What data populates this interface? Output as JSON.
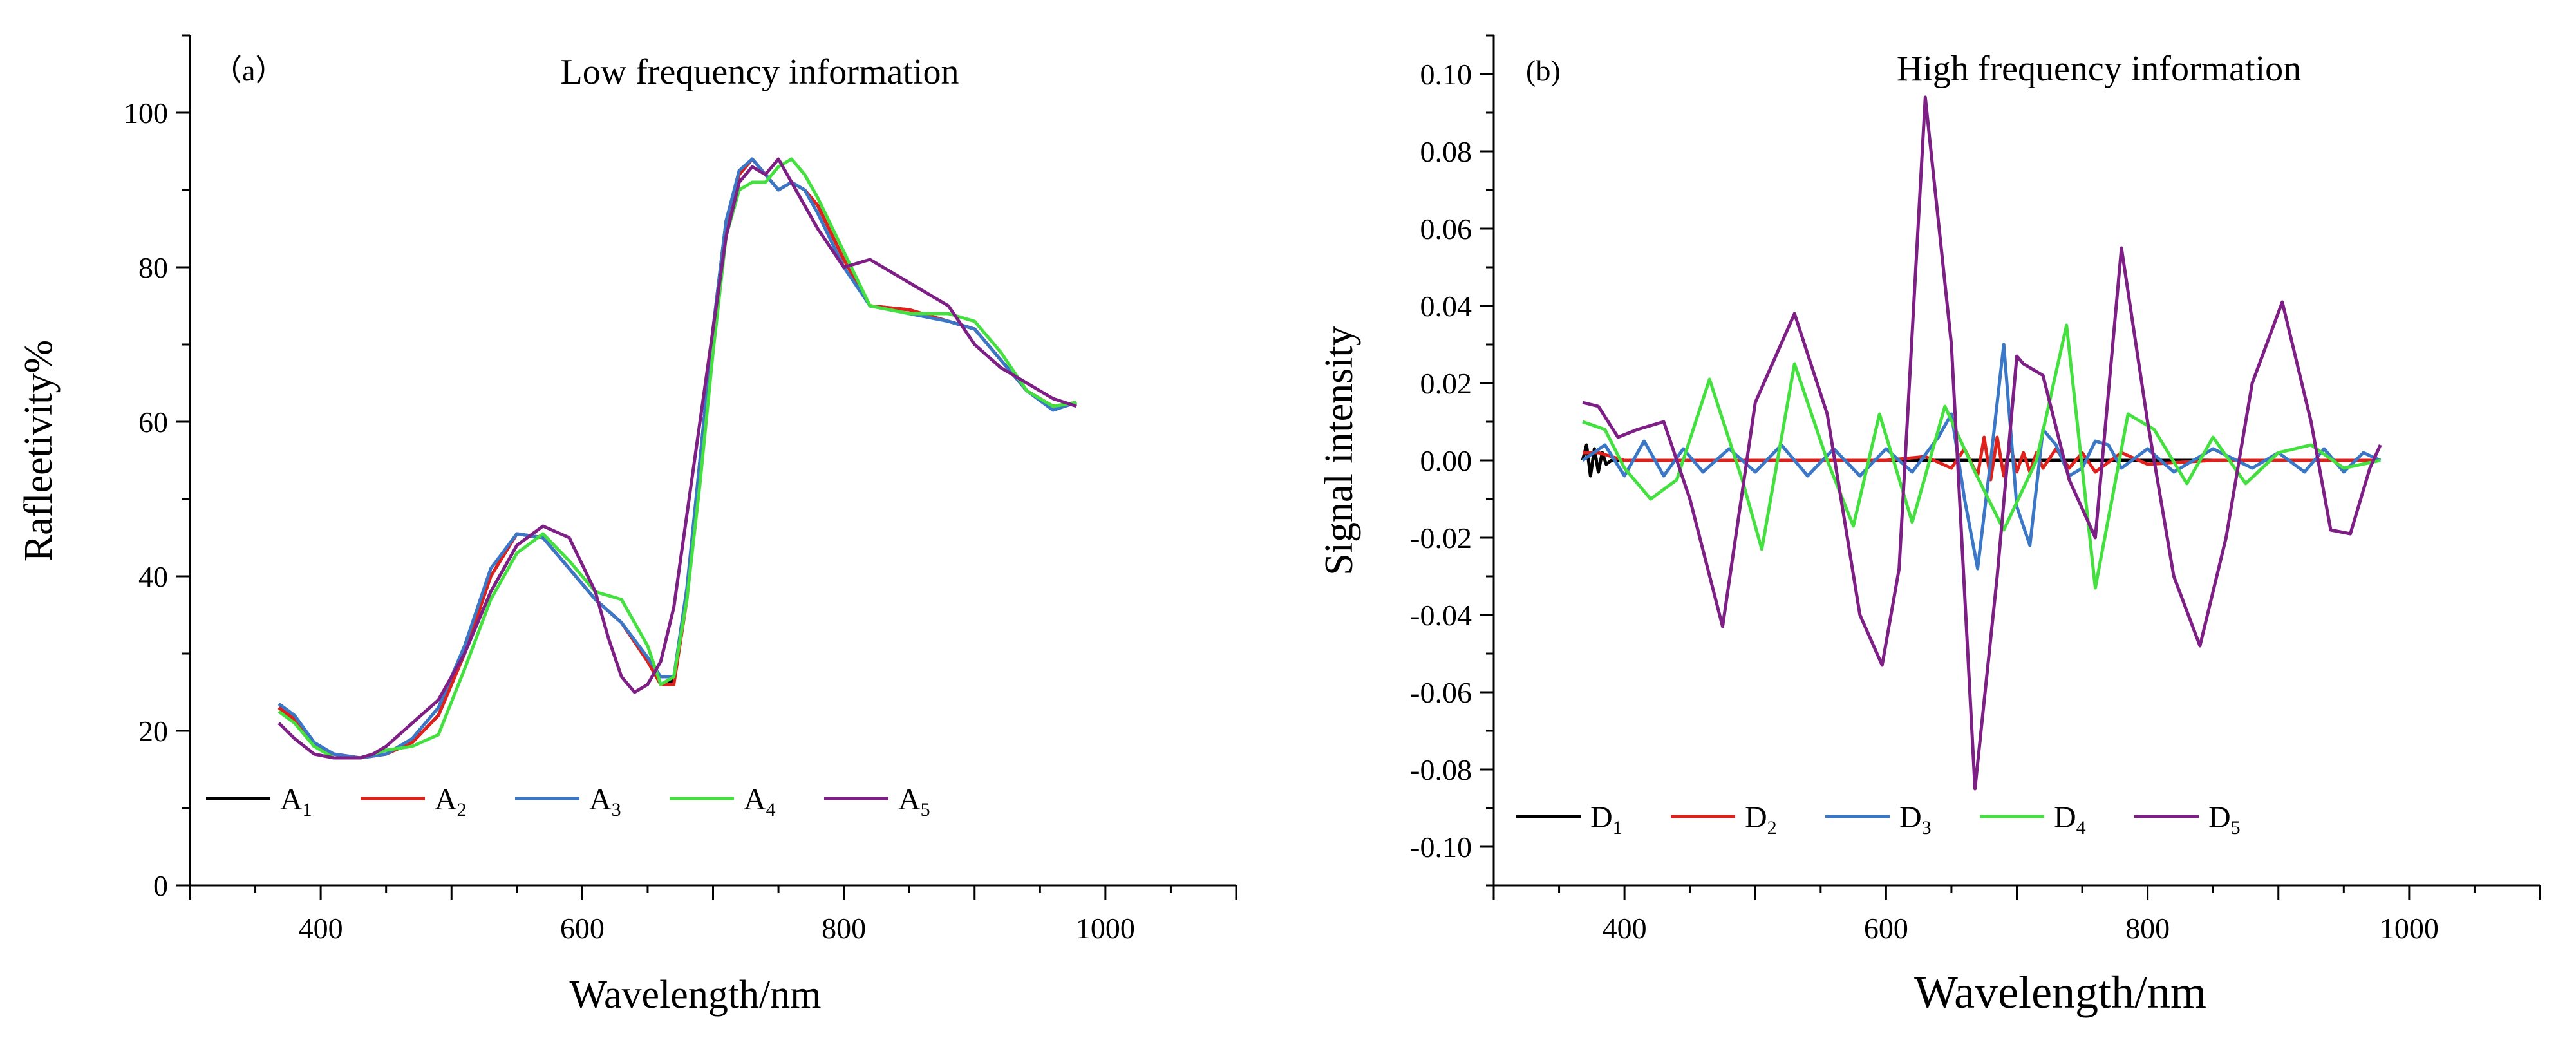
{
  "chart_data": [
    {
      "id": "a",
      "type": "line",
      "panel_label": "（a）",
      "title": "Low frequency information",
      "xlabel": "Wavelength/nm",
      "ylabel": "Rafleetivity%",
      "xlim": [
        300,
        1100
      ],
      "ylim": [
        0,
        110
      ],
      "xticks": [
        400,
        600,
        800,
        1000
      ],
      "yticks": [
        0,
        20,
        40,
        60,
        80,
        100
      ],
      "legend_position": "bottom-left",
      "series": [
        {
          "name": "A1",
          "base": "A",
          "sub": "1",
          "color": "#000000",
          "x": [
            368,
            380,
            395,
            410,
            430,
            450,
            470,
            490,
            510,
            530,
            550,
            570,
            590,
            610,
            630,
            650,
            660,
            670,
            680,
            690,
            700,
            710,
            720,
            730,
            740,
            750,
            760,
            770,
            780,
            800,
            820,
            850,
            880,
            900,
            920,
            940,
            960,
            978
          ],
          "y": [
            23,
            21.5,
            18,
            17,
            16.5,
            17,
            18.5,
            22,
            30,
            40,
            45.5,
            45,
            41,
            37,
            34,
            29,
            26,
            26.5,
            38,
            55,
            72,
            86,
            92,
            94,
            92,
            90,
            91,
            90,
            88,
            81,
            75,
            74.5,
            73,
            72,
            68,
            64,
            62,
            62.5
          ]
        },
        {
          "name": "A2",
          "base": "A",
          "sub": "2",
          "color": "#e0201b",
          "x": [
            368,
            380,
            395,
            410,
            430,
            450,
            470,
            490,
            510,
            530,
            550,
            570,
            590,
            610,
            630,
            650,
            660,
            670,
            680,
            690,
            700,
            710,
            720,
            730,
            740,
            750,
            760,
            770,
            780,
            800,
            820,
            850,
            880,
            900,
            920,
            940,
            960,
            978
          ],
          "y": [
            23,
            21.5,
            18,
            17,
            16.5,
            17,
            18.5,
            22,
            30,
            40,
            45.5,
            45,
            41,
            37,
            34,
            29,
            26,
            26,
            37,
            54,
            71,
            85.5,
            92,
            94,
            92,
            90,
            91,
            90,
            88,
            81,
            75,
            74.5,
            73,
            72,
            68,
            64,
            62,
            62.5
          ]
        },
        {
          "name": "A3",
          "base": "A",
          "sub": "3",
          "color": "#3b77c7",
          "x": [
            368,
            380,
            395,
            410,
            430,
            450,
            470,
            490,
            510,
            530,
            550,
            570,
            590,
            610,
            630,
            650,
            660,
            670,
            680,
            690,
            700,
            710,
            720,
            730,
            740,
            750,
            760,
            770,
            780,
            800,
            820,
            850,
            880,
            900,
            920,
            940,
            960,
            978
          ],
          "y": [
            23.5,
            22,
            18.5,
            17,
            16.5,
            17,
            19,
            23,
            31,
            41,
            45.5,
            45,
            41,
            37,
            34,
            29.5,
            27,
            27,
            38.5,
            55,
            72,
            86,
            92.5,
            94,
            92,
            90,
            91,
            90,
            87,
            80,
            75,
            74,
            73,
            72,
            68,
            64,
            61.5,
            62.5
          ]
        },
        {
          "name": "A4",
          "base": "A",
          "sub": "4",
          "color": "#44e040",
          "x": [
            368,
            380,
            395,
            410,
            430,
            450,
            470,
            490,
            510,
            530,
            550,
            570,
            590,
            610,
            630,
            650,
            660,
            670,
            680,
            690,
            700,
            710,
            720,
            730,
            740,
            750,
            760,
            770,
            780,
            800,
            820,
            850,
            880,
            900,
            920,
            940,
            960,
            978
          ],
          "y": [
            22.5,
            21,
            18,
            16.5,
            16.5,
            17.5,
            18,
            19.5,
            28,
            37,
            43,
            45.5,
            42,
            38,
            37,
            31,
            26,
            27,
            37,
            52,
            69,
            84,
            90,
            91,
            91,
            93,
            94,
            92,
            89,
            82,
            75,
            74,
            74,
            73,
            69,
            64,
            62,
            62.5
          ]
        },
        {
          "name": "A5",
          "base": "A",
          "sub": "5",
          "color": "#7e1f86",
          "x": [
            368,
            380,
            395,
            410,
            430,
            440,
            450,
            470,
            490,
            510,
            530,
            550,
            570,
            590,
            610,
            620,
            630,
            640,
            650,
            660,
            670,
            680,
            690,
            700,
            710,
            720,
            730,
            740,
            750,
            760,
            770,
            780,
            800,
            820,
            850,
            880,
            900,
            920,
            940,
            960,
            978
          ],
          "y": [
            21,
            19,
            17,
            16.5,
            16.5,
            17,
            18,
            21,
            24,
            30,
            38,
            44,
            46.5,
            45,
            38,
            32,
            27,
            25,
            26,
            29,
            36,
            48,
            60,
            72,
            84,
            91,
            93,
            92,
            94,
            91,
            88,
            85,
            80,
            81,
            78,
            75,
            70,
            67,
            65,
            63,
            62
          ]
        }
      ]
    },
    {
      "id": "b",
      "type": "line",
      "panel_label": "(b)",
      "title": "High frequency information",
      "xlabel": "Wavelength/nm",
      "ylabel": "Signal intensity",
      "xlim": [
        300,
        1100
      ],
      "ylim": [
        -0.11,
        0.11
      ],
      "xticks": [
        400,
        600,
        800,
        1000
      ],
      "yticks": [
        "0.10",
        "0.08",
        "0.06",
        "0.04",
        "0.02",
        "0.00",
        "-0.02",
        "-0.04",
        "-0.06",
        "-0.08",
        "-0.10"
      ],
      "legend_position": "bottom-left",
      "series": [
        {
          "name": "D1",
          "base": "D",
          "sub": "1",
          "color": "#000000",
          "x": [
            368,
            371,
            374,
            377,
            380,
            383,
            386,
            390,
            400,
            450,
            500,
            550,
            600,
            650,
            700,
            750,
            800,
            850,
            900,
            950,
            978
          ],
          "y": [
            0.0,
            0.004,
            -0.004,
            0.003,
            -0.003,
            0.002,
            -0.001,
            0.0,
            0.0,
            0.0,
            0.0,
            0.0,
            0.0,
            0.0,
            0.0,
            0.0,
            0.0,
            0.0,
            0.0,
            0.0,
            0.0
          ]
        },
        {
          "name": "D2",
          "base": "D",
          "sub": "2",
          "color": "#e0201b",
          "x": [
            368,
            380,
            400,
            450,
            500,
            550,
            600,
            630,
            650,
            660,
            670,
            675,
            680,
            685,
            690,
            695,
            700,
            705,
            710,
            715,
            720,
            730,
            740,
            750,
            760,
            780,
            800,
            850,
            900,
            950,
            978
          ],
          "y": [
            0.002,
            0.002,
            0.0,
            0.0,
            0.0,
            0.0,
            0.0,
            0.001,
            -0.002,
            0.003,
            -0.004,
            0.006,
            -0.005,
            0.006,
            -0.004,
            0.004,
            -0.003,
            0.002,
            -0.003,
            0.002,
            -0.002,
            0.003,
            -0.002,
            0.002,
            -0.003,
            0.002,
            -0.001,
            0.0,
            0.0,
            0.0,
            0.0
          ]
        },
        {
          "name": "D3",
          "base": "D",
          "sub": "3",
          "color": "#3b77c7",
          "x": [
            368,
            385,
            400,
            415,
            430,
            445,
            460,
            480,
            500,
            520,
            540,
            560,
            580,
            600,
            620,
            640,
            650,
            660,
            670,
            680,
            690,
            700,
            710,
            720,
            730,
            740,
            750,
            760,
            770,
            780,
            800,
            820,
            850,
            880,
            900,
            920,
            935,
            950,
            965,
            978
          ],
          "y": [
            0.0,
            0.004,
            -0.004,
            0.005,
            -0.004,
            0.003,
            -0.003,
            0.003,
            -0.003,
            0.004,
            -0.004,
            0.003,
            -0.004,
            0.003,
            -0.003,
            0.006,
            0.012,
            -0.01,
            -0.028,
            0.0,
            0.03,
            -0.012,
            -0.022,
            0.008,
            0.004,
            -0.004,
            -0.002,
            0.005,
            0.004,
            -0.002,
            0.003,
            -0.003,
            0.003,
            -0.002,
            0.002,
            -0.003,
            0.003,
            -0.003,
            0.002,
            0.0
          ]
        },
        {
          "name": "D4",
          "base": "D",
          "sub": "4",
          "color": "#44e040",
          "x": [
            368,
            385,
            400,
            420,
            440,
            465,
            490,
            505,
            530,
            555,
            575,
            595,
            620,
            645,
            668,
            690,
            715,
            738,
            760,
            785,
            805,
            830,
            850,
            875,
            900,
            925,
            950,
            978
          ],
          "y": [
            0.01,
            0.008,
            -0.002,
            -0.01,
            -0.005,
            0.021,
            -0.005,
            -0.023,
            0.025,
            0.0,
            -0.017,
            0.012,
            -0.016,
            0.014,
            -0.003,
            -0.018,
            0.0,
            0.035,
            -0.033,
            0.012,
            0.008,
            -0.006,
            0.006,
            -0.006,
            0.002,
            0.004,
            -0.002,
            0.0
          ]
        },
        {
          "name": "D5",
          "base": "D",
          "sub": "5",
          "color": "#7e1f86",
          "x": [
            368,
            380,
            395,
            410,
            430,
            450,
            475,
            500,
            530,
            555,
            580,
            597,
            610,
            630,
            650,
            668,
            685,
            700,
            705,
            720,
            740,
            760,
            780,
            800,
            820,
            840,
            860,
            880,
            903,
            925,
            940,
            955,
            970,
            978
          ],
          "y": [
            0.015,
            0.014,
            0.006,
            0.008,
            0.01,
            -0.01,
            -0.043,
            0.015,
            0.038,
            0.012,
            -0.04,
            -0.053,
            -0.028,
            0.094,
            0.03,
            -0.085,
            -0.03,
            0.027,
            0.025,
            0.022,
            -0.005,
            -0.02,
            0.055,
            0.01,
            -0.03,
            -0.048,
            -0.02,
            0.02,
            0.041,
            0.01,
            -0.018,
            -0.019,
            -0.002,
            0.004
          ]
        }
      ]
    }
  ]
}
